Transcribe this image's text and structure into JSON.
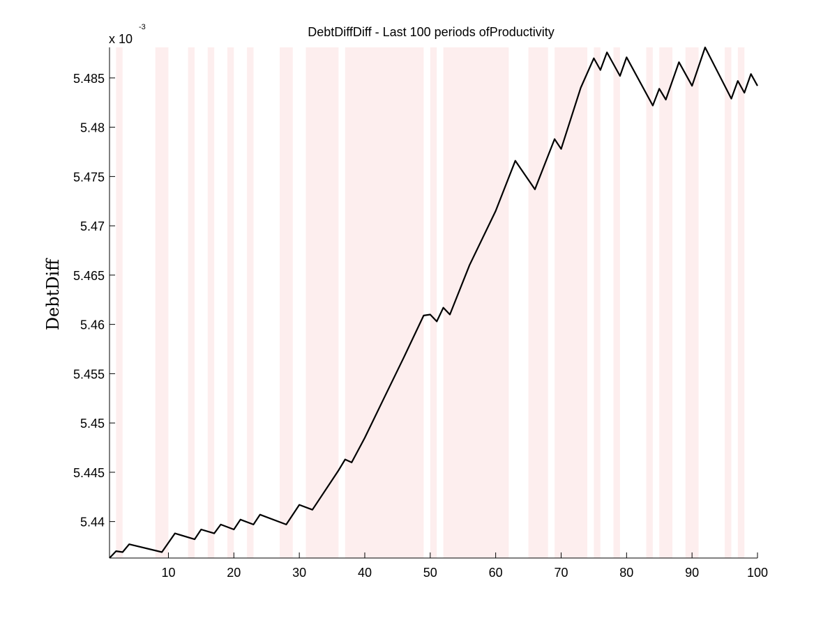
{
  "chart_data": {
    "type": "line",
    "title": "DebtDiffDiff - Last 100 periods ofProductivity",
    "xlabel": "",
    "ylabel": "DebtDiff",
    "y_exponent_base": "x 10",
    "y_exponent_power": "-3",
    "xlim": [
      1,
      100
    ],
    "ylim": [
      5.4363,
      5.4881
    ],
    "x_ticks": [
      10,
      20,
      30,
      40,
      50,
      60,
      70,
      80,
      90,
      100
    ],
    "x_tick_labels": [
      "10",
      "20",
      "30",
      "40",
      "50",
      "60",
      "70",
      "80",
      "90",
      "100"
    ],
    "y_ticks": [
      5.44,
      5.445,
      5.45,
      5.455,
      5.46,
      5.465,
      5.47,
      5.475,
      5.48,
      5.485
    ],
    "y_tick_labels": [
      "5.44",
      "5.445",
      "5.45",
      "5.455",
      "5.46",
      "5.465",
      "5.47",
      "5.475",
      "5.48",
      "5.485"
    ],
    "grid": false,
    "shaded_regions_color": "#fdeeee",
    "line_color": "#000000",
    "shaded_regions": [
      [
        2,
        3
      ],
      [
        8,
        10
      ],
      [
        13,
        14
      ],
      [
        16,
        17
      ],
      [
        19,
        20
      ],
      [
        22,
        23
      ],
      [
        27,
        29
      ],
      [
        31,
        36
      ],
      [
        37,
        49
      ],
      [
        50,
        51
      ],
      [
        52,
        62
      ],
      [
        65,
        68
      ],
      [
        69,
        74
      ],
      [
        75,
        76
      ],
      [
        78,
        79
      ],
      [
        83,
        84
      ],
      [
        85,
        87
      ],
      [
        89,
        91
      ],
      [
        95,
        96
      ],
      [
        97,
        98
      ]
    ],
    "series": [
      {
        "x": [
          1,
          2,
          3,
          4,
          9,
          11,
          14,
          15,
          17,
          18,
          20,
          21,
          23,
          24,
          28,
          30,
          32,
          36,
          37,
          38,
          40,
          43,
          46,
          49,
          50,
          51,
          52,
          53,
          56,
          60,
          63,
          66,
          69,
          70,
          73,
          75,
          76,
          77,
          79,
          80,
          84,
          85,
          86,
          88,
          90,
          92,
          96,
          97,
          98,
          99,
          100
        ],
        "y": [
          5.4363,
          5.437,
          5.4369,
          5.4377,
          5.4369,
          5.4388,
          5.4382,
          5.4392,
          5.4388,
          5.4397,
          5.4392,
          5.4402,
          5.4397,
          5.4407,
          5.4397,
          5.4417,
          5.4412,
          5.4452,
          5.4463,
          5.446,
          5.4485,
          5.4526,
          5.4567,
          5.4609,
          5.461,
          5.4603,
          5.4617,
          5.461,
          5.466,
          5.4715,
          5.4766,
          5.4737,
          5.4788,
          5.4778,
          5.484,
          5.487,
          5.4858,
          5.4876,
          5.4852,
          5.4871,
          5.4822,
          5.4839,
          5.4828,
          5.4866,
          5.4842,
          5.4881,
          5.4829,
          5.4847,
          5.4835,
          5.4854,
          5.4842
        ]
      }
    ]
  }
}
